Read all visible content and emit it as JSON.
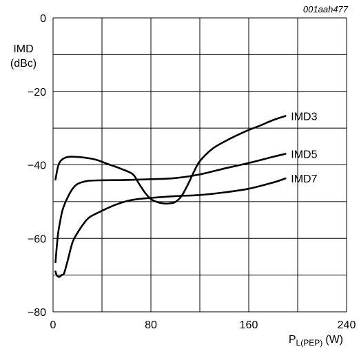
{
  "figure_id": "001aah477",
  "chart_data": {
    "type": "line",
    "xlabel": "P",
    "xlabel_sub": "L(PEP)",
    "xlabel_unit": "(W)",
    "ylabel_line1": "IMD",
    "ylabel_line2": "(dBc)",
    "xlim": [
      0,
      240
    ],
    "ylim": [
      -80,
      0
    ],
    "x_ticks": [
      0,
      80,
      160,
      240
    ],
    "x_tick_labels": [
      "0",
      "80",
      "160",
      "240"
    ],
    "y_ticks": [
      0,
      -20,
      -40,
      -60,
      -80
    ],
    "y_tick_labels": [
      "0",
      "−20",
      "−40",
      "−60",
      "−80"
    ],
    "grid": true,
    "series": [
      {
        "name": "IMD3",
        "x": [
          2,
          4,
          6,
          9,
          13,
          18,
          25,
          35,
          45,
          55,
          65,
          70,
          75,
          80,
          85,
          90,
          95,
          100,
          105,
          110,
          115,
          120,
          130,
          140,
          150,
          160,
          170,
          180,
          190
        ],
        "y": [
          -44,
          -40.5,
          -39,
          -38.2,
          -37.8,
          -37.8,
          -38,
          -38.6,
          -39.8,
          -41,
          -42.5,
          -45,
          -47.5,
          -49.3,
          -50.1,
          -50.5,
          -50.5,
          -50.1,
          -48.5,
          -45.5,
          -42,
          -39,
          -35.7,
          -33.7,
          -32,
          -30.5,
          -29.2,
          -27.8,
          -26.7
        ]
      },
      {
        "name": "IMD5",
        "x": [
          2,
          4,
          6,
          8,
          12,
          16,
          20,
          25,
          30,
          40,
          60,
          80,
          100,
          120,
          140,
          160,
          180,
          190
        ],
        "y": [
          -66.5,
          -59,
          -55,
          -52,
          -48.8,
          -46.5,
          -45.2,
          -44.6,
          -44.3,
          -44.2,
          -44.1,
          -43.9,
          -43.6,
          -42.6,
          -41,
          -39.5,
          -37.8,
          -37
        ]
      },
      {
        "name": "IMD7",
        "x": [
          2,
          3,
          5,
          7,
          9,
          12,
          16,
          20,
          25,
          30,
          40,
          50,
          60,
          70,
          80,
          100,
          120,
          140,
          160,
          180,
          190
        ],
        "y": [
          -69,
          -70,
          -70.5,
          -70,
          -69.5,
          -66,
          -61,
          -58.5,
          -56,
          -54.2,
          -52.5,
          -51,
          -49.9,
          -49.3,
          -49,
          -48.5,
          -48.2,
          -47.5,
          -46.5,
          -44.8,
          -43.7
        ]
      }
    ]
  }
}
